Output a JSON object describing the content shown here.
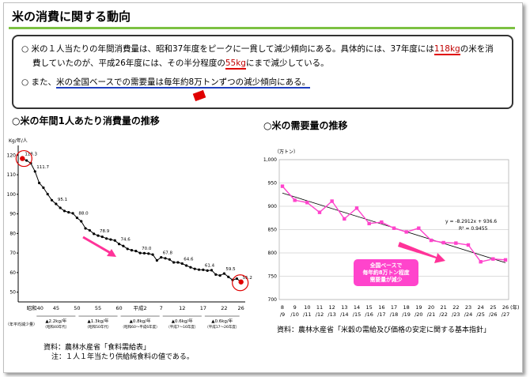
{
  "title": "米の消費に関する動向",
  "summary": {
    "line1_a": "○ 米の１人当たりの年間消費量は、昭和37年度をピークに一貫して減少傾向にある。具体的には、37年度には",
    "line1_red": "118kg",
    "line1_b": "の米を消",
    "line2_a": "費していたのが、平成26年度には、その半分程度の",
    "line2_red": "55kg",
    "line2_b": "にまで減少している。",
    "line3_a": "○ また、",
    "line3_u": "米の全国ベースでの需要量は毎年約8万トンずつの減少傾向にある。"
  },
  "chart_data": [
    {
      "type": "line",
      "title": "○米の年間1人あたり消費量の推移",
      "ylabel": "Kg/年/人",
      "ylim": [
        45,
        125
      ],
      "yticks": [
        "50",
        "60",
        "70",
        "80",
        "90",
        "100",
        "110",
        "120"
      ],
      "ytick_values": [
        50,
        60,
        70,
        80,
        90,
        100,
        110,
        120
      ],
      "xticks": [
        "昭和40",
        "45",
        "50",
        "55",
        "60",
        "平成2",
        "7",
        "12",
        "17",
        "22",
        "26"
      ],
      "xtick_years": [
        1965,
        1970,
        1975,
        1980,
        1985,
        1990,
        1995,
        2000,
        2005,
        2010,
        2014
      ],
      "x": [
        1962,
        1963,
        1964,
        1965,
        1966,
        1967,
        1968,
        1969,
        1970,
        1971,
        1972,
        1973,
        1974,
        1975,
        1976,
        1977,
        1978,
        1979,
        1980,
        1981,
        1982,
        1983,
        1984,
        1985,
        1986,
        1987,
        1988,
        1989,
        1990,
        1991,
        1992,
        1993,
        1994,
        1995,
        1996,
        1997,
        1998,
        1999,
        2000,
        2001,
        2002,
        2003,
        2004,
        2005,
        2006,
        2007,
        2008,
        2009,
        2010,
        2011,
        2012,
        2013,
        2014
      ],
      "values": [
        118.3,
        117.3,
        115.9,
        111.7,
        105.8,
        103.4,
        100.1,
        97.0,
        95.1,
        93.1,
        91.5,
        90.8,
        90.3,
        88.0,
        86.2,
        82.6,
        81.6,
        79.8,
        78.9,
        78.3,
        77.4,
        76.9,
        76.4,
        74.6,
        73.6,
        72.1,
        71.4,
        71.0,
        70.0,
        69.9,
        69.7,
        69.2,
        66.2,
        67.8,
        67.3,
        66.7,
        65.2,
        65.2,
        64.6,
        63.6,
        62.7,
        61.9,
        61.5,
        61.4,
        61.0,
        61.2,
        59.0,
        58.5,
        59.5,
        57.8,
        56.2,
        56.9,
        55.2
      ],
      "value_labels": [
        {
          "year": 1962,
          "text": "118.3"
        },
        {
          "year": 1965,
          "text": "111.7"
        },
        {
          "year": 1970,
          "text": "95.1"
        },
        {
          "year": 1975,
          "text": "88.0"
        },
        {
          "year": 1980,
          "text": "78.9"
        },
        {
          "year": 1985,
          "text": "74.6"
        },
        {
          "year": 1990,
          "text": "70.0"
        },
        {
          "year": 1995,
          "text": "67.8"
        },
        {
          "year": 2000,
          "text": "64.6"
        },
        {
          "year": 2005,
          "text": "61.4"
        },
        {
          "year": 2010,
          "text": "59.5"
        },
        {
          "year": 2014,
          "text": "55.2"
        }
      ],
      "rate_labels": [
        {
          "text": "▲2.2kg/年",
          "sub": "（昭和40年代）"
        },
        {
          "text": "▲1.3kg/年",
          "sub": "（昭和50年代）"
        },
        {
          "text": "▲0.8kg/年",
          "sub": "（昭和60〜平成6年度）"
        },
        {
          "text": "▲0.6kg/年",
          "sub": "（平成7〜16年度）"
        },
        {
          "text": "▲0.6kg/年",
          "sub": "（平成17〜26年度）"
        }
      ],
      "rate_axis_label": "（年平均減少量）",
      "source": "資料：農林水産省「食料需給表」",
      "note": "注：１人１年当たり供給純食料の値である。"
    },
    {
      "type": "line",
      "title": "○米の需要量の推移",
      "ylabel": "（万トン）",
      "ylim": [
        700,
        1000
      ],
      "yticks": [
        "700",
        "750",
        "800",
        "850",
        "900",
        "950",
        "1,000"
      ],
      "ytick_values": [
        700,
        750,
        800,
        850,
        900,
        950,
        1000
      ],
      "categories": [
        "8\n/9",
        "9\n/10",
        "10\n/11",
        "11\n/12",
        "12\n/13",
        "13\n/14",
        "14\n/15",
        "15\n/16",
        "16\n/17",
        "17\n/18",
        "18\n/19",
        "19\n/20",
        "20\n/21",
        "21\n/22",
        "22\n/23",
        "23\n/24",
        "24\n/25",
        "25\n/26",
        "26\n/27"
      ],
      "xunit": "(年)",
      "values": [
        943,
        913,
        908,
        887,
        911,
        873,
        896,
        863,
        866,
        853,
        845,
        853,
        827,
        822,
        821,
        817,
        781,
        787,
        785
      ],
      "trend_label": "y = -8.2912x + 936.6",
      "r2_label": "R² = 0.9455",
      "trend": {
        "slope": -8.2912,
        "intercept": 936.6
      },
      "callout": "全国ベースで\n毎年約8万トン程度\n需要量が減少",
      "source": "資料：農林水産省「米穀の需給及び価格の安定に関する基本指針」"
    }
  ]
}
